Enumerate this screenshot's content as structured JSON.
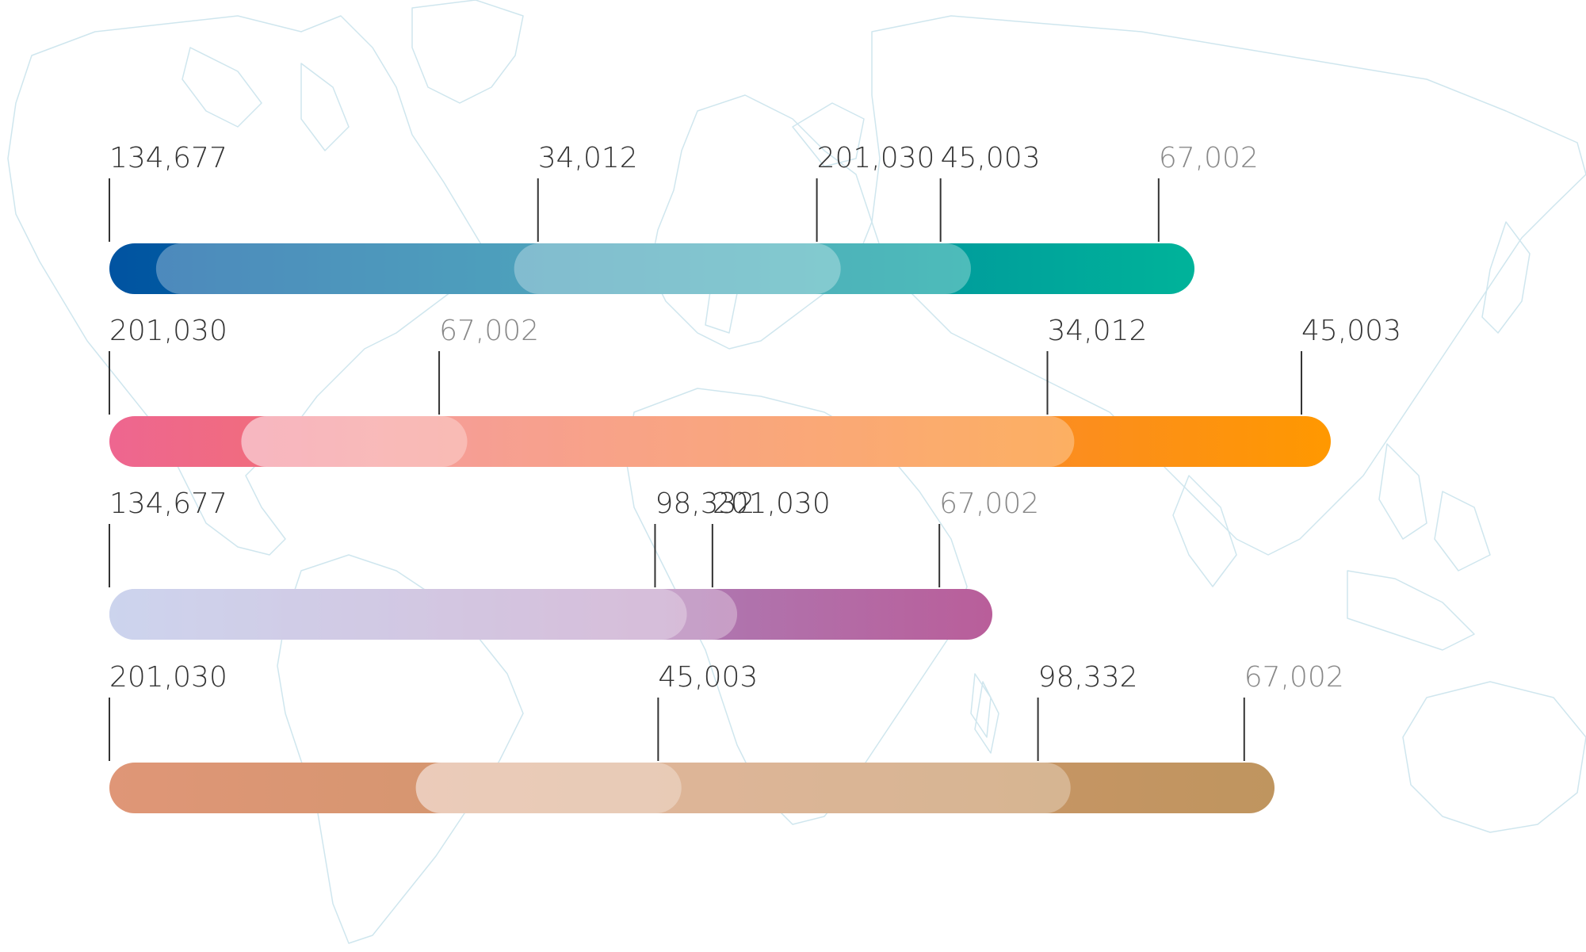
{
  "chart_data": {
    "type": "bar",
    "title": "",
    "xlabel": "",
    "ylabel": "",
    "grid": false,
    "legend": "none",
    "rows": [
      {
        "gradient": [
          "#0153a1",
          "#00b39a"
        ],
        "markers": [
          {
            "label": "134,677",
            "pos": 0.0,
            "color": "#333333"
          },
          {
            "label": "34,012",
            "pos": 0.395,
            "color": "#333333"
          },
          {
            "label": "201,030",
            "pos": 0.652,
            "color": "#333333"
          },
          {
            "label": "45,003",
            "pos": 0.766,
            "color": "#333333"
          },
          {
            "label": "67,002",
            "pos": 0.967,
            "color": "#888888"
          }
        ],
        "overlays": [
          {
            "start": 0.043,
            "end": 0.794,
            "opacity": 0.3
          },
          {
            "start": 0.373,
            "end": 0.674,
            "opacity": 0.3
          }
        ]
      },
      {
        "gradient": [
          "#ee6690",
          "#ff9800"
        ],
        "markers": [
          {
            "label": "201,030",
            "pos": 0.0,
            "color": "#333333"
          },
          {
            "label": "67,002",
            "pos": 0.27,
            "color": "#888888"
          },
          {
            "label": "34,012",
            "pos": 0.768,
            "color": "#333333"
          },
          {
            "label": "45,003",
            "pos": 0.976,
            "color": "#333333"
          }
        ],
        "overlays": [
          {
            "start": 0.108,
            "end": 0.79,
            "opacity": 0.3
          },
          {
            "start": 0.108,
            "end": 0.293,
            "opacity": 0.3
          }
        ]
      },
      {
        "gradient": [
          "#99a8dc",
          "#b95e9a"
        ],
        "markers": [
          {
            "label": "134,677",
            "pos": 0.0,
            "color": "#333333"
          },
          {
            "label": "98,332",
            "pos": 0.618,
            "color": "#333333"
          },
          {
            "label": "201,030",
            "pos": 0.683,
            "color": "#333333"
          },
          {
            "label": "67,002",
            "pos": 0.94,
            "color": "#888888"
          }
        ],
        "overlays": [
          {
            "start": 0.0,
            "end": 0.711,
            "opacity": 0.3
          },
          {
            "start": 0.0,
            "end": 0.654,
            "opacity": 0.3
          }
        ]
      },
      {
        "gradient": [
          "#df9677",
          "#bf955f"
        ],
        "markers": [
          {
            "label": "201,030",
            "pos": 0.0,
            "color": "#333333"
          },
          {
            "label": "45,003",
            "pos": 0.471,
            "color": "#333333"
          },
          {
            "label": "98,332",
            "pos": 0.797,
            "color": "#333333"
          },
          {
            "label": "67,002",
            "pos": 0.974,
            "color": "#888888"
          }
        ],
        "overlays": [
          {
            "start": 0.263,
            "end": 0.825,
            "opacity": 0.3
          },
          {
            "start": 0.263,
            "end": 0.491,
            "opacity": 0.3
          }
        ]
      }
    ]
  }
}
